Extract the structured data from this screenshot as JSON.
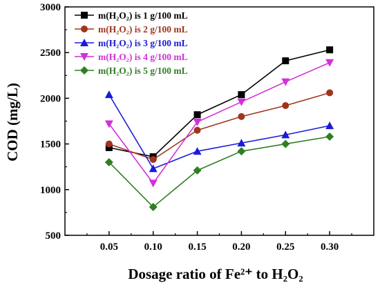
{
  "chart_data": {
    "type": "line",
    "title": "",
    "xlabel": "Dosage ratio of Fe²⁺ to H₂O₂",
    "ylabel": "COD (mg/L)",
    "x": [
      0.05,
      0.1,
      0.15,
      0.2,
      0.25,
      0.3
    ],
    "x_tick_labels": [
      "0.05",
      "0.10",
      "0.15",
      "0.20",
      "0.25",
      "0.30"
    ],
    "xlim": [
      0.0,
      0.35
    ],
    "ylim": [
      500,
      3000
    ],
    "y_ticks": [
      500,
      1000,
      1500,
      2000,
      2500,
      3000
    ],
    "y_tick_labels": [
      "500",
      "1000",
      "1500",
      "2000",
      "2500",
      "3000"
    ],
    "grid": false,
    "legend_position": "top-left",
    "series": [
      {
        "name": "m(H₂O₂) is 1 g/100 mL",
        "color": "#000000",
        "marker": "square",
        "values": [
          1460,
          1360,
          1820,
          2040,
          2410,
          2530
        ]
      },
      {
        "name": "m(H₂O₂) is 2 g/100 mL",
        "color": "#a0341d",
        "marker": "circle",
        "values": [
          1500,
          1330,
          1650,
          1800,
          1920,
          2060
        ]
      },
      {
        "name": "m(H₂O₂) is 3 g/100 mL",
        "color": "#1a1adb",
        "marker": "triangle-up",
        "values": [
          2040,
          1230,
          1420,
          1510,
          1600,
          1700
        ]
      },
      {
        "name": "m(H₂O₂) is 4 g/100 mL",
        "color": "#d42fd8",
        "marker": "triangle-down",
        "values": [
          1720,
          1070,
          1740,
          1960,
          2180,
          2390
        ]
      },
      {
        "name": "m(H₂O₂) is 5 g/100 mL",
        "color": "#2f7f22",
        "marker": "diamond",
        "values": [
          1300,
          810,
          1210,
          1420,
          1500,
          1580
        ]
      }
    ]
  }
}
